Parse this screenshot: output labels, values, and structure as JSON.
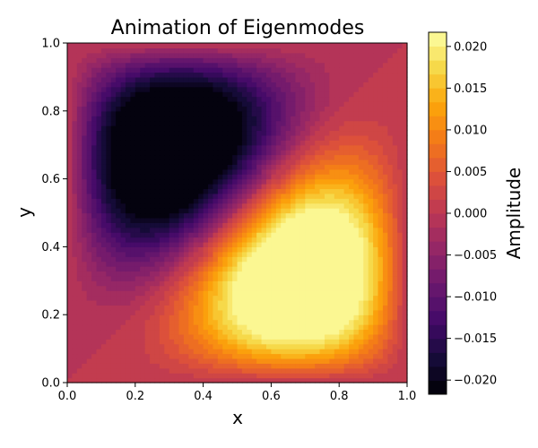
{
  "chart_data": {
    "type": "heatmap",
    "title": "Animation of Eigenmodes",
    "xlabel": "x",
    "ylabel": "y",
    "xlim": [
      0.0,
      1.0
    ],
    "ylim": [
      0.0,
      1.0
    ],
    "x_ticks": [
      "0.0",
      "0.2",
      "0.4",
      "0.6",
      "0.8",
      "1.0"
    ],
    "y_ticks": [
      "0.0",
      "0.2",
      "0.4",
      "0.6",
      "0.8",
      "1.0"
    ],
    "field": {
      "description_formula": "amplitude * (sin(pi*x)*sin(2*pi*y) - sin(2*pi*x)*sin(pi*y))",
      "amplitude": 0.0217,
      "extrema": [
        {
          "label": "minimum",
          "x": 0.3,
          "y": 0.7,
          "value": -0.0217
        },
        {
          "label": "maximum",
          "x": 0.7,
          "y": 0.3,
          "value": 0.0217
        }
      ],
      "contour_levels": 26
    },
    "colorbar": {
      "label": "Amplitude",
      "colormap": "inferno",
      "range": [
        -0.0217,
        0.0217
      ],
      "ticks": [
        -0.02,
        -0.015,
        -0.01,
        -0.005,
        0.0,
        0.005,
        0.01,
        0.015,
        0.02
      ],
      "tick_labels": [
        "−0.020",
        "−0.015",
        "−0.010",
        "−0.005",
        "0.000",
        "0.005",
        "0.010",
        "0.015",
        "0.020"
      ]
    }
  }
}
